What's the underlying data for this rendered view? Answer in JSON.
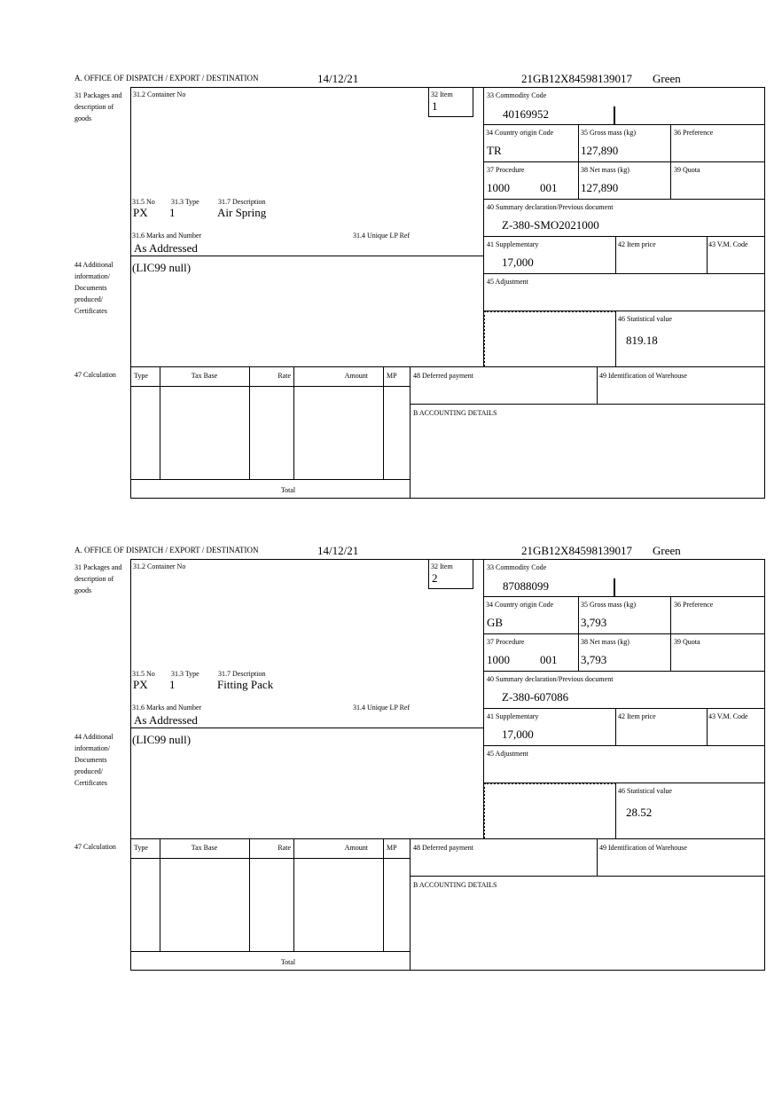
{
  "header": {
    "office_label": "A.  OFFICE OF DISPATCH / EXPORT / DESTINATION",
    "date": "14/12/21",
    "reference": "21GB12X84598139017",
    "route": "Green"
  },
  "labels": {
    "packages": "31 Packages and description of goods",
    "container_no": "31.2 Container No",
    "item": "32 Item",
    "no": "31.5 No",
    "type": "31.3 Type",
    "description": "31.7 Description",
    "marks": "31.6 Marks and Number",
    "unique_lp_ref": "31.4 Unique LP Ref",
    "commodity_code": "33 Commodity Code",
    "country_origin": "34 Country origin Code",
    "gross_mass": "35 Gross mass (kg)",
    "preference": "36 Preference",
    "procedure": "37 Procedure",
    "net_mass": "38 Net mass (kg)",
    "quota": "39 Quota",
    "summary_declaration": "40 Summary declaration/Previous document",
    "supplementary": "41 Supplementary",
    "item_price": "42 Item price",
    "vm_code": "43 V.M. Code",
    "additional_info": "44 Additional information/ Documents produced/ Certificates",
    "adjustment": "45 Adjustment",
    "statistical_value": "46 Statistical value",
    "calculation": "47 Calculation",
    "calc_type": "Type",
    "calc_tax_base": "Tax Base",
    "calc_rate": "Rate",
    "calc_amount": "Amount",
    "calc_mp": "MP",
    "total": "Total",
    "deferred_payment": "48 Deferred payment",
    "warehouse": "49 Identification of Warehouse",
    "accounting": "B ACCOUNTING DETAILS"
  },
  "items": [
    {
      "item_no": "1",
      "package_kind": "PX",
      "package_count": "1",
      "description": "Air Spring",
      "marks": "As Addressed",
      "commodity_code": "40169952",
      "country_origin": "TR",
      "gross_mass": "127,890",
      "procedure": "1000",
      "procedure_additional": "001",
      "net_mass": "127,890",
      "summary_declaration": "Z-380-SMO2021000",
      "supplementary": "17,000",
      "additional_info": "(LIC99 null)",
      "statistical_value": "819.18"
    },
    {
      "item_no": "2",
      "package_kind": "PX",
      "package_count": "1",
      "description": "Fitting Pack",
      "marks": "As Addressed",
      "commodity_code": "87088099",
      "country_origin": "GB",
      "gross_mass": "3,793",
      "procedure": "1000",
      "procedure_additional": "001",
      "net_mass": "3,793",
      "summary_declaration": "Z-380-607086",
      "supplementary": "17,000",
      "additional_info": "(LIC99 null)",
      "statistical_value": "28.52"
    }
  ]
}
